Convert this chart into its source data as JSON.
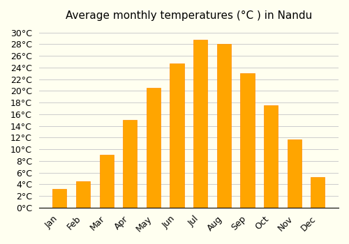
{
  "title": "Average monthly temperatures (°C ) in Nandu",
  "months": [
    "Jan",
    "Feb",
    "Mar",
    "Apr",
    "May",
    "Jun",
    "Jul",
    "Aug",
    "Sep",
    "Oct",
    "Nov",
    "Dec"
  ],
  "temperatures": [
    3.2,
    4.5,
    9.0,
    15.0,
    20.5,
    24.7,
    28.8,
    28.0,
    23.0,
    17.5,
    11.7,
    5.2
  ],
  "bar_color": "#FFA500",
  "bar_edge_color": "#FF8C00",
  "background_color": "#FFFFF0",
  "grid_color": "#cccccc",
  "ylim": [
    0,
    31
  ],
  "ytick_step": 2,
  "title_fontsize": 11,
  "tick_fontsize": 9,
  "figsize": [
    5.0,
    3.5
  ],
  "dpi": 100
}
